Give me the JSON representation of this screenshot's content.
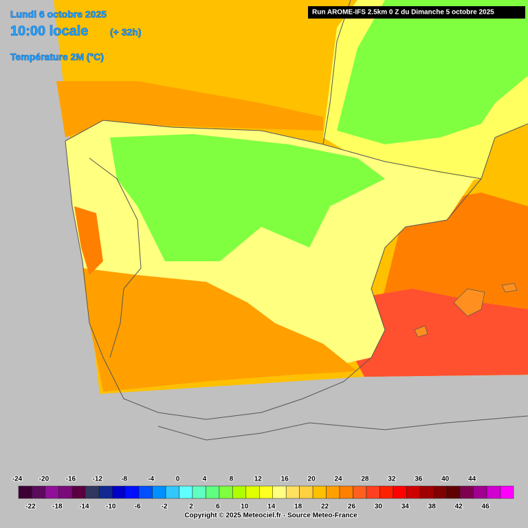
{
  "header": {
    "date": "Lundi 6 octobre 2025",
    "time": "10:00 locale",
    "lead": "(+ 32h)",
    "parameter": "Température 2M (°C)",
    "run": "Run AROME-IFS 2.5km 0 Z du Dimanche 5 octobre 2025"
  },
  "legend": {
    "ticks": [
      -24,
      -22,
      -20,
      -18,
      -16,
      -14,
      -12,
      -10,
      -8,
      -6,
      -4,
      -2,
      0,
      2,
      4,
      6,
      8,
      10,
      12,
      14,
      16,
      18,
      20,
      22,
      24,
      26,
      28,
      30,
      32,
      34,
      36,
      38,
      40,
      42,
      44,
      46
    ],
    "colors": [
      "#3c0034",
      "#5c0a5c",
      "#90109a",
      "#7a0a7a",
      "#5a0040",
      "#303860",
      "#102890",
      "#0000c8",
      "#0010ff",
      "#0050ff",
      "#0090ff",
      "#30c8ff",
      "#60ffff",
      "#60ffc0",
      "#60ff80",
      "#80ff40",
      "#b0ff00",
      "#e0ff00",
      "#ffff20",
      "#ffff80",
      "#ffe060",
      "#ffd040",
      "#ffc000",
      "#ffa000",
      "#ff8000",
      "#ff6020",
      "#ff4020",
      "#ff2000",
      "#ff0000",
      "#d00000",
      "#a00000",
      "#800000",
      "#600000",
      "#800050",
      "#a00090",
      "#d000d0",
      "#ff00ff"
    ]
  },
  "footer": {
    "copyright": "Copyright © 2025 Meteociel.fr - Source Meteo-France"
  }
}
